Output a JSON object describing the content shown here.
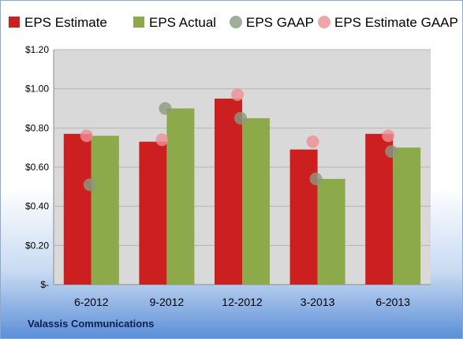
{
  "company": "Valassis Communications",
  "colors": {
    "eps_estimate": "#cc2020",
    "eps_actual": "#8caa4a",
    "eps_gaap": "#8a9a7e",
    "eps_estimate_gaap": "#ee8f93",
    "plot_background": "#d9d9d9"
  },
  "chart_data": {
    "type": "bar",
    "categories": [
      "6-2012",
      "9-2012",
      "12-2012",
      "3-2013",
      "6-2013"
    ],
    "series": [
      {
        "name": "EPS Estimate",
        "kind": "bar",
        "values": [
          0.77,
          0.73,
          0.95,
          0.69,
          0.77
        ]
      },
      {
        "name": "EPS Actual",
        "kind": "bar",
        "values": [
          0.76,
          0.9,
          0.85,
          0.54,
          0.7
        ]
      },
      {
        "name": "EPS GAAP",
        "kind": "marker",
        "values": [
          0.51,
          0.9,
          0.85,
          0.54,
          0.68
        ]
      },
      {
        "name": "EPS Estimate GAAP",
        "kind": "marker",
        "values": [
          0.76,
          0.74,
          0.97,
          0.73,
          0.76
        ]
      }
    ],
    "yticks": [
      "$-",
      "$0.20",
      "$0.40",
      "$0.60",
      "$0.80",
      "$1.00",
      "$1.20"
    ],
    "ylim": [
      0,
      1.2
    ],
    "grid": true,
    "legend_position": "top"
  }
}
